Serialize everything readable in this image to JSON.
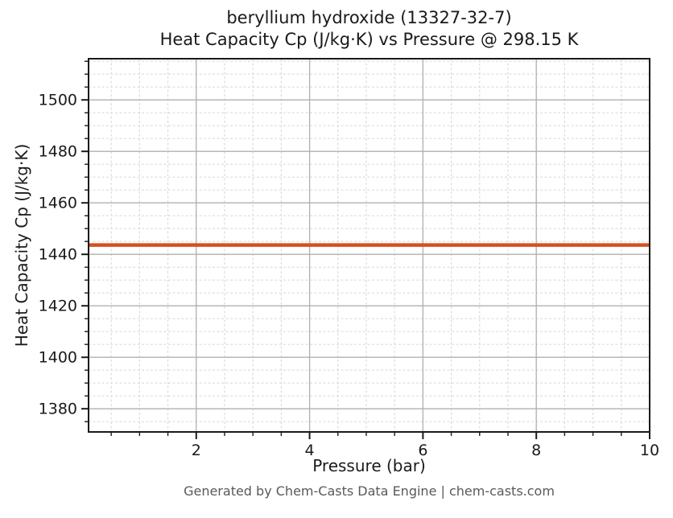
{
  "chart_data": {
    "type": "line",
    "title_line1": "beryllium hydroxide (13327-32-7)",
    "title_line2": "Heat Capacity Cp (J/kg·K) vs Pressure @ 298.15 K",
    "xlabel": "Pressure (bar)",
    "ylabel": "Heat Capacity Cp (J/kg·K)",
    "substance": "beryllium hydroxide",
    "cas_number": "13327-32-7",
    "temperature_label": "298.15 K",
    "xlim": [
      0.1,
      10
    ],
    "ylim": [
      1371,
      1516
    ],
    "x_major_ticks": [
      2,
      4,
      6,
      8,
      10
    ],
    "x_minor_step": 0.5,
    "y_major_ticks": [
      1380,
      1400,
      1420,
      1440,
      1460,
      1480,
      1500
    ],
    "y_minor_step": 5,
    "grid": true,
    "legend": false,
    "series": [
      {
        "name": "Heat Capacity Cp",
        "color": "#d3521e",
        "x": [
          0.1,
          10
        ],
        "y": [
          1443.6,
          1443.6
        ],
        "constant_value": 1443.6
      }
    ]
  },
  "footer": {
    "credit": "Generated by Chem-Casts Data Engine | chem-casts.com"
  },
  "colors": {
    "line": "#d3521e",
    "major_grid": "#b0b0b0",
    "minor_grid": "#dcdcdc",
    "spine": "#1a1a1a",
    "tick_label": "#1a1a1a",
    "footer_text": "#595959",
    "background": "#ffffff"
  }
}
